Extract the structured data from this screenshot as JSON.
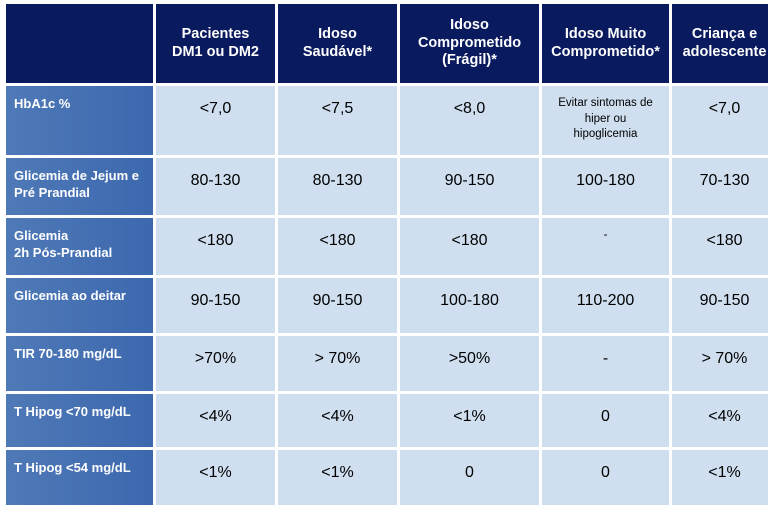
{
  "table": {
    "headers": [
      "",
      "Pacientes\nDM1 ou DM2",
      "Idoso\nSaudável*",
      "Idoso\nComprometido\n(Frágil)*",
      "Idoso Muito\nComprometido*",
      "Criança e\nadolescente"
    ],
    "rows": [
      {
        "label": "HbA1c %",
        "cells": [
          "<7,0",
          "<7,5",
          "<8,0",
          "Evitar sintomas de\nhiper ou\nhipoglicemia",
          "<7,0"
        ]
      },
      {
        "label": "Glicemia de Jejum e\nPré Prandial",
        "cells": [
          "80-130",
          "80-130",
          "90-150",
          "100-180",
          "70-130"
        ]
      },
      {
        "label": "Glicemia\n2h Pós-Prandial",
        "cells": [
          "<180",
          "<180",
          "<180",
          "-",
          "<180"
        ]
      },
      {
        "label": "Glicemia ao deitar",
        "cells": [
          "90-150",
          "90-150",
          "100-180",
          "110-200",
          "90-150"
        ]
      },
      {
        "label": "TIR 70-180 mg/dL",
        "cells": [
          ">70%",
          "> 70%",
          ">50%",
          "-",
          "> 70%"
        ]
      },
      {
        "label": "T Hipog <70 mg/dL",
        "cells": [
          "<4%",
          "<4%",
          "<1%",
          "0",
          "<4%"
        ]
      },
      {
        "label": "T Hipog <54 mg/dL",
        "cells": [
          "<1%",
          "<1%",
          "0",
          "0",
          "<1%"
        ]
      }
    ]
  },
  "colors": {
    "header_bg": "#0a1a5e",
    "row_label_bg": "#4a74b4",
    "cell_bg": "#cfdff0"
  }
}
